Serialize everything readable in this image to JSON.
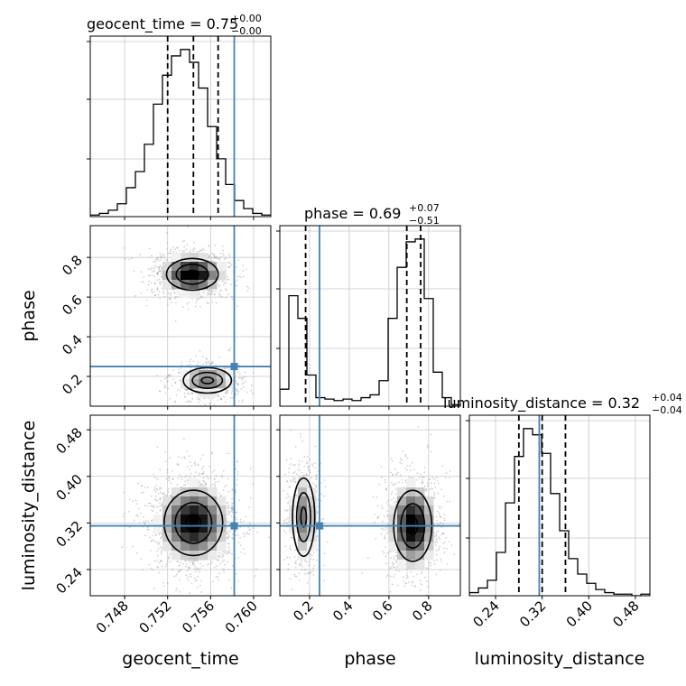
{
  "chart_data": {
    "type": "corner",
    "parameters": [
      "geocent_time",
      "phase",
      "luminosity_distance"
    ],
    "axis_labels": {
      "geocent_time": "geocent_time",
      "phase": "phase",
      "luminosity_distance": "luminosity_distance"
    },
    "ranges": {
      "geocent_time": [
        0.7448,
        0.7616
      ],
      "phase": [
        0.05,
        0.96
      ],
      "luminosity_distance": [
        0.195,
        0.505
      ]
    },
    "ticks": {
      "geocent_time": [
        0.748,
        0.752,
        0.756,
        0.76
      ],
      "phase": [
        0.2,
        0.4,
        0.6,
        0.8
      ],
      "luminosity_distance": [
        0.24,
        0.32,
        0.4,
        0.48
      ]
    },
    "tick_labels": {
      "geocent_time": [
        "0.748",
        "0.752",
        "0.756",
        "0.760"
      ],
      "phase": [
        "0.2",
        "0.4",
        "0.6",
        "0.8"
      ],
      "luminosity_distance": [
        "0.24",
        "0.32",
        "0.40",
        "0.48"
      ]
    },
    "truths": {
      "geocent_time": 0.7582,
      "phase": 0.25,
      "luminosity_distance": 0.315
    },
    "titles": {
      "geocent_time": {
        "text": "geocent_time = 0.75",
        "sup": "+0.00",
        "sub": "−0.00"
      },
      "phase": {
        "text": "phase = 0.69",
        "sup": "+0.07",
        "sub": "−0.51"
      },
      "luminosity_distance": {
        "text": "luminosity_distance = 0.32",
        "sup": "+0.04",
        "sub": "−0.04"
      }
    },
    "quantiles": {
      "geocent_time": [
        0.752,
        0.7544,
        0.7567
      ],
      "phase": [
        0.18,
        0.69,
        0.76
      ],
      "luminosity_distance": [
        0.28,
        0.32,
        0.36
      ]
    },
    "histograms": {
      "geocent_time": {
        "edges_start": 0.7448,
        "bin_width": 0.00084,
        "counts": [
          1,
          2,
          4,
          8,
          18,
          28,
          45,
          70,
          88,
          100,
          104,
          96,
          80,
          56,
          36,
          20,
          10,
          5,
          2,
          1
        ]
      },
      "phase": {
        "edges_start": 0.05,
        "bin_width": 0.0455,
        "counts": [
          12,
          78,
          62,
          22,
          6,
          5,
          4,
          5,
          4,
          6,
          8,
          18,
          62,
          98,
          116,
          118,
          76,
          24,
          6,
          1
        ]
      },
      "luminosity_distance": {
        "edges_start": 0.195,
        "bin_width": 0.0155,
        "counts": [
          2,
          5,
          10,
          28,
          60,
          90,
          108,
          104,
          92,
          66,
          42,
          24,
          14,
          8,
          4,
          2,
          1,
          1,
          0,
          1
        ]
      }
    },
    "contours_2d": [
      {
        "x": "geocent_time",
        "y": "phase",
        "blobs": [
          {
            "cx": 0.7543,
            "cy": 0.715,
            "sx": 0.0015,
            "sy": 0.05,
            "w": 1.0
          },
          {
            "cx": 0.7557,
            "cy": 0.18,
            "sx": 0.0014,
            "sy": 0.04,
            "w": 0.55
          }
        ]
      },
      {
        "x": "geocent_time",
        "y": "luminosity_distance",
        "blobs": [
          {
            "cx": 0.7544,
            "cy": 0.32,
            "sx": 0.0017,
            "sy": 0.035,
            "w": 1.0
          }
        ]
      },
      {
        "x": "phase",
        "y": "luminosity_distance",
        "blobs": [
          {
            "cx": 0.17,
            "cy": 0.33,
            "sx": 0.035,
            "sy": 0.042,
            "w": 0.55
          },
          {
            "cx": 0.72,
            "cy": 0.315,
            "sx": 0.06,
            "sy": 0.038,
            "w": 1.0
          }
        ]
      }
    ],
    "grid": true,
    "colors": {
      "truth": "#4682b4",
      "hist": "#000000",
      "quantile": "#000000",
      "samples": "#9a9a9a",
      "grid": "#c8c8c8"
    }
  }
}
